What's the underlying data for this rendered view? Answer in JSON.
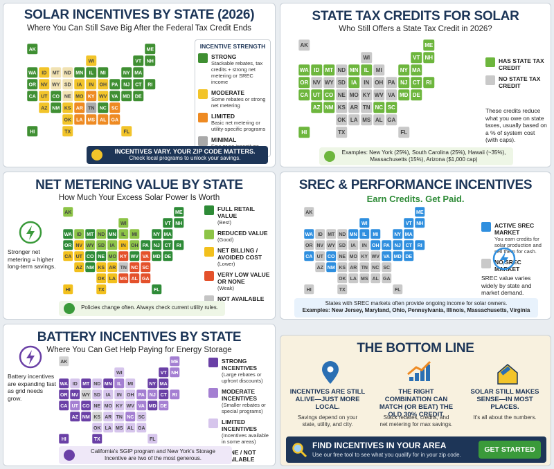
{
  "state_labels": [
    "AK",
    "ME",
    "WI",
    "VT",
    "NH",
    "WA",
    "ID",
    "MT",
    "ND",
    "MN",
    "IL",
    "MI",
    "NY",
    "MA",
    "OR",
    "NV",
    "WY",
    "SD",
    "IA",
    "IN",
    "OH",
    "PA",
    "NJ",
    "CT",
    "RI",
    "CA",
    "UT",
    "CO",
    "NE",
    "MO",
    "KY",
    "WV",
    "VA",
    "MD",
    "DE",
    "AZ",
    "NM",
    "KS",
    "AR",
    "TN",
    "NC",
    "SC",
    "OK",
    "LA",
    "MS",
    "AL",
    "GA",
    "HI",
    "TX",
    "FL"
  ],
  "panels": [
    {
      "title": "SOLAR INCENTIVES BY STATE (2026)",
      "subtitle": "Where You Can Still Save Big After the Federal Tax Credit Ends",
      "map_colors": [
        "#3f8f32",
        "#3f8f32",
        "#f2c42a",
        "#3f8f32",
        "#3f8f32",
        "#3f8f32",
        "#f2c42a",
        "#f1e2b3",
        "#f1e2b3",
        "#3f8f32",
        "#3f8f32",
        "#3f8f32",
        "#3f8f32",
        "#3f8f32",
        "#3f8f32",
        "#f2c42a",
        "#f1e2b3",
        "#f1e2b3",
        "#f2c42a",
        "#f2c42a",
        "#f2c42a",
        "#3f8f32",
        "#3f8f32",
        "#3f8f32",
        "#3f8f32",
        "#3f8f32",
        "#f2c42a",
        "#3f8f32",
        "#f1e2b3",
        "#f2c42a",
        "#ee8a22",
        "#f2c42a",
        "#3f8f32",
        "#3f8f32",
        "#3f8f32",
        "#f2c42a",
        "#3f8f32",
        "#f2c42a",
        "#ee8a22",
        "#a9a9a9",
        "#3f8f32",
        "#ee8a22",
        "#f2c42a",
        "#ee8a22",
        "#ee8a22",
        "#ee8a22",
        "#ee8a22",
        "#3f8f32",
        "#f2c42a",
        "#f2c42a"
      ],
      "legend": {
        "title": "INCENTIVE STRENGTH",
        "items": [
          {
            "name": "STRONG",
            "desc": "Stackable rebates, tax credits + strong net metering or SREC income",
            "color": "#3f8f32"
          },
          {
            "name": "MODERATE",
            "desc": "Some rebates or strong net metering",
            "color": "#f2c42a"
          },
          {
            "name": "LIMITED",
            "desc": "Basic net metering or utility-specific programs",
            "color": "#ee8a22"
          },
          {
            "name": "MINIMAL",
            "desc": "Few or no incentives",
            "color": "#a9a9a9"
          }
        ]
      },
      "footer": [
        "INCENTIVES VARY. YOUR ZIP CODE MATTERS.",
        "Check local programs to unlock your savings."
      ]
    },
    {
      "title": "STATE TAX CREDITS FOR SOLAR",
      "subtitle": "Who Still Offers a State Tax Credit in 2026?",
      "map_colors": [
        "#c9c9c9",
        "#6db63d",
        "#c9c9c9",
        "#6db63d",
        "#6db63d",
        "#6db63d",
        "#6db63d",
        "#6db63d",
        "#c9c9c9",
        "#6db63d",
        "#6db63d",
        "#c9c9c9",
        "#6db63d",
        "#6db63d",
        "#6db63d",
        "#c9c9c9",
        "#c9c9c9",
        "#c9c9c9",
        "#6db63d",
        "#c9c9c9",
        "#c9c9c9",
        "#c9c9c9",
        "#6db63d",
        "#6db63d",
        "#6db63d",
        "#6db63d",
        "#6db63d",
        "#6db63d",
        "#c9c9c9",
        "#c9c9c9",
        "#c9c9c9",
        "#c9c9c9",
        "#c9c9c9",
        "#6db63d",
        "#6db63d",
        "#6db63d",
        "#6db63d",
        "#c9c9c9",
        "#c9c9c9",
        "#c9c9c9",
        "#6db63d",
        "#6db63d",
        "#c9c9c9",
        "#c9c9c9",
        "#c9c9c9",
        "#c9c9c9",
        "#c9c9c9",
        "#6db63d",
        "#c9c9c9",
        "#c9c9c9"
      ],
      "legend": {
        "items": [
          {
            "name": "HAS STATE TAX CREDIT",
            "color": "#6db63d"
          },
          {
            "name": "NO STATE TAX CREDIT",
            "color": "#c9c9c9"
          }
        ]
      },
      "side_note": "These credits reduce what you owe on state taxes, usually based on a % of system cost (with caps).",
      "footer": [
        "Examples: New York (25%), South Carolina (25%), Hawaii (~35%), Massachusetts (15%), Arizona ($1,000 cap)"
      ]
    },
    {
      "title": "NET METERING VALUE BY STATE",
      "subtitle": "How Much Your Excess Solar Power Is Worth",
      "map_colors": [
        "#8dc447",
        "#2e8b37",
        "#8dc447",
        "#2e8b37",
        "#2e8b37",
        "#2e8b37",
        "#8dc447",
        "#2e8b37",
        "#8dc447",
        "#2e8b37",
        "#8dc447",
        "#8dc447",
        "#2e8b37",
        "#2e8b37",
        "#2e8b37",
        "#f2c01d",
        "#8dc447",
        "#8dc447",
        "#8dc447",
        "#f2c01d",
        "#8dc447",
        "#2e8b37",
        "#2e8b37",
        "#2e8b37",
        "#2e8b37",
        "#f2c01d",
        "#f2c01d",
        "#2e8b37",
        "#2e8b37",
        "#8dc447",
        "#e4512b",
        "#2e8b37",
        "#e4512b",
        "#2e8b37",
        "#2e8b37",
        "#f2c01d",
        "#2e8b37",
        "#f2c01d",
        "#f2c01d",
        "#c4c4c4",
        "#e4512b",
        "#e4512b",
        "#f2c01d",
        "#f2c01d",
        "#e4512b",
        "#e4512b",
        "#e4512b",
        "#f2c01d",
        "#f2c01d",
        "#2e8b37"
      ],
      "legend": {
        "items": [
          {
            "name": "FULL RETAIL VALUE",
            "desc": "(Best)",
            "color": "#2e8b37"
          },
          {
            "name": "REDUCED VALUE",
            "desc": "(Good)",
            "color": "#8dc447"
          },
          {
            "name": "NET BILLING / AVOIDED COST",
            "desc": "(Lower)",
            "color": "#f2c01d"
          },
          {
            "name": "VERY LOW VALUE OR NONE",
            "desc": "(Weak)",
            "color": "#e4512b"
          },
          {
            "name": "NOT AVAILABLE",
            "color": "#c4c4c4"
          }
        ]
      },
      "side_note": "Stronger net metering = higher long-term savings.",
      "footer": [
        "Policies change often. Always check current utility rules."
      ]
    },
    {
      "title": "SREC & PERFORMANCE INCENTIVES",
      "subtitle": "Earn Credits. Get Paid.",
      "map_colors": [
        "#c9c9c9",
        "#2f8fdf",
        "#2f8fdf",
        "#2f8fdf",
        "#2f8fdf",
        "#2f8fdf",
        "#c9c9c9",
        "#c9c9c9",
        "#c9c9c9",
        "#2f8fdf",
        "#2f8fdf",
        "#2f8fdf",
        "#2f8fdf",
        "#2f8fdf",
        "#c9c9c9",
        "#c9c9c9",
        "#c9c9c9",
        "#c9c9c9",
        "#c9c9c9",
        "#c9c9c9",
        "#2f8fdf",
        "#2f8fdf",
        "#2f8fdf",
        "#2f8fdf",
        "#2f8fdf",
        "#2f8fdf",
        "#c9c9c9",
        "#2f8fdf",
        "#c9c9c9",
        "#c9c9c9",
        "#c9c9c9",
        "#c9c9c9",
        "#2f8fdf",
        "#2f8fdf",
        "#2f8fdf",
        "#c9c9c9",
        "#2f8fdf",
        "#c9c9c9",
        "#c9c9c9",
        "#c9c9c9",
        "#c9c9c9",
        "#c9c9c9",
        "#c9c9c9",
        "#c9c9c9",
        "#c9c9c9",
        "#c9c9c9",
        "#c9c9c9",
        "#c9c9c9",
        "#c9c9c9",
        "#c9c9c9"
      ],
      "legend": {
        "items": [
          {
            "name": "ACTIVE SREC MARKET",
            "desc": "You earn credits for solar production and sell them for cash.",
            "color": "#2f8fdf"
          },
          {
            "name": "NO SREC MARKET",
            "color": "#c9c9c9"
          }
        ]
      },
      "side_note": "SREC value varies widely by state and market demand.",
      "footer": [
        "States with SREC markets often provide ongoing income for solar owners.",
        "Examples: New Jersey, Maryland, Ohio, Pennsylvania, Illinois, Massachusetts, Virginia"
      ]
    },
    {
      "title": "BATTERY INCENTIVES BY STATE",
      "subtitle": "Where You Can Get Help Paying for Energy Storage",
      "map_colors": [
        "#d2d2d2",
        "#a47fd2",
        "#d6c5ec",
        "#6a40a6",
        "#a47fd2",
        "#6a40a6",
        "#d6c5ec",
        "#6a40a6",
        "#d6c5ec",
        "#6a40a6",
        "#a47fd2",
        "#d6c5ec",
        "#6a40a6",
        "#6a40a6",
        "#6a40a6",
        "#6a40a6",
        "#d2d2d2",
        "#d6c5ec",
        "#d6c5ec",
        "#d6c5ec",
        "#d6c5ec",
        "#a47fd2",
        "#a47fd2",
        "#6a40a6",
        "#a47fd2",
        "#6a40a6",
        "#a47fd2",
        "#6a40a6",
        "#d6c5ec",
        "#d6c5ec",
        "#d6c5ec",
        "#d6c5ec",
        "#a47fd2",
        "#6a40a6",
        "#a47fd2",
        "#6a40a6",
        "#6a40a6",
        "#d2d2d2",
        "#d6c5ec",
        "#d6c5ec",
        "#a47fd2",
        "#d6c5ec",
        "#d6c5ec",
        "#d6c5ec",
        "#d6c5ec",
        "#d6c5ec",
        "#d6c5ec",
        "#6a40a6",
        "#6a40a6",
        "#d6c5ec"
      ],
      "legend": {
        "items": [
          {
            "name": "STRONG INCENTIVES",
            "desc": "(Large rebates or upfront discounts)",
            "color": "#6a40a6"
          },
          {
            "name": "MODERATE INCENTIVES",
            "desc": "(Smaller rebates or special programs)",
            "color": "#a47fd2"
          },
          {
            "name": "LIMITED INCENTIVES",
            "desc": "(Incentives available in some areas)",
            "color": "#d6c5ec"
          },
          {
            "name": "NONE / NOT AVAILABLE",
            "color": "#d2d2d2"
          }
        ]
      },
      "side_note": "Battery incentives are expanding fast as grid needs grow.",
      "footer": [
        "California's SGIP program and New York's Storage Incentive are two of the most generous."
      ]
    },
    {
      "title": "THE BOTTOM LINE",
      "columns": [
        {
          "heading": "INCENTIVES ARE STILL ALIVE—JUST MORE LOCAL.",
          "text": "Savings depend on your state, utility, and city."
        },
        {
          "heading": "THE RIGHT COMBINATION CAN MATCH (OR BEAT) THE OLD 30% CREDIT.",
          "text": "Stack rebates, credits, and net metering for max savings."
        },
        {
          "heading": "SOLAR STILL MAKES SENSE—IN MOST PLACES.",
          "text": "It's all about the numbers."
        }
      ],
      "banner": {
        "title": "FIND INCENTIVES IN YOUR AREA",
        "text": "Use our free tool to see what you qualify for in your zip code.",
        "button": "GET STARTED"
      }
    }
  ]
}
